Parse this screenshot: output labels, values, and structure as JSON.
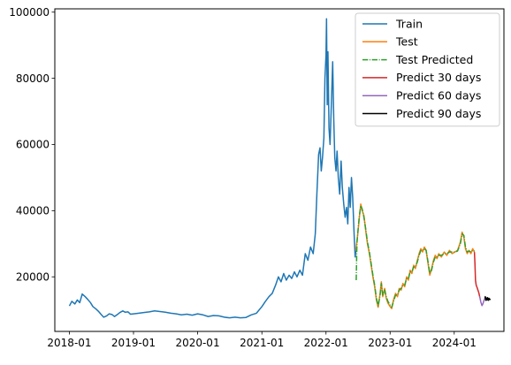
{
  "chart_data": {
    "type": "line",
    "title": "",
    "xlabel": "",
    "ylabel": "",
    "xlim": [
      "2017-10-10",
      "2024-10-10"
    ],
    "ylim": [
      3500,
      101000
    ],
    "grid": false,
    "legend_position": "top-right",
    "x_ticks": [
      "2018-01",
      "2019-01",
      "2020-01",
      "2021-01",
      "2022-01",
      "2023-01",
      "2024-01"
    ],
    "y_ticks": [
      20000,
      40000,
      60000,
      80000,
      100000
    ],
    "series": [
      {
        "name": "Train",
        "color": "#1f77b4",
        "style": "solid",
        "points": [
          [
            "2018-01-01",
            11200
          ],
          [
            "2018-01-15",
            12600
          ],
          [
            "2018-02-01",
            11800
          ],
          [
            "2018-02-15",
            13000
          ],
          [
            "2018-03-01",
            12200
          ],
          [
            "2018-03-15",
            14800
          ],
          [
            "2018-04-01",
            14000
          ],
          [
            "2018-04-15",
            13200
          ],
          [
            "2018-05-01",
            12200
          ],
          [
            "2018-05-15",
            11000
          ],
          [
            "2018-06-01",
            10300
          ],
          [
            "2018-06-15",
            9600
          ],
          [
            "2018-07-01",
            8600
          ],
          [
            "2018-07-15",
            7800
          ],
          [
            "2018-08-01",
            8200
          ],
          [
            "2018-08-15",
            8800
          ],
          [
            "2018-09-01",
            8600
          ],
          [
            "2018-09-15",
            8000
          ],
          [
            "2018-10-01",
            8600
          ],
          [
            "2018-10-15",
            9200
          ],
          [
            "2018-11-01",
            9700
          ],
          [
            "2018-11-15",
            9300
          ],
          [
            "2018-12-01",
            9400
          ],
          [
            "2018-12-15",
            8700
          ],
          [
            "2019-01-01",
            8800
          ],
          [
            "2019-02-01",
            9000
          ],
          [
            "2019-03-01",
            9200
          ],
          [
            "2019-04-01",
            9400
          ],
          [
            "2019-05-01",
            9700
          ],
          [
            "2019-06-01",
            9500
          ],
          [
            "2019-07-01",
            9300
          ],
          [
            "2019-08-01",
            9000
          ],
          [
            "2019-09-01",
            8800
          ],
          [
            "2019-10-01",
            8500
          ],
          [
            "2019-11-01",
            8700
          ],
          [
            "2019-12-01",
            8400
          ],
          [
            "2020-01-01",
            8800
          ],
          [
            "2020-02-01",
            8500
          ],
          [
            "2020-03-01",
            8000
          ],
          [
            "2020-04-01",
            8300
          ],
          [
            "2020-05-01",
            8200
          ],
          [
            "2020-06-01",
            7800
          ],
          [
            "2020-07-01",
            7600
          ],
          [
            "2020-08-01",
            7800
          ],
          [
            "2020-09-01",
            7600
          ],
          [
            "2020-10-01",
            7700
          ],
          [
            "2020-11-01",
            8500
          ],
          [
            "2020-12-01",
            9000
          ],
          [
            "2021-01-01",
            11000
          ],
          [
            "2021-01-20",
            12500
          ],
          [
            "2021-02-10",
            14000
          ],
          [
            "2021-03-01",
            15000
          ],
          [
            "2021-03-20",
            17500
          ],
          [
            "2021-04-05",
            20000
          ],
          [
            "2021-04-20",
            18500
          ],
          [
            "2021-05-05",
            21000
          ],
          [
            "2021-05-20",
            19000
          ],
          [
            "2021-06-05",
            20500
          ],
          [
            "2021-06-20",
            19500
          ],
          [
            "2021-07-05",
            21500
          ],
          [
            "2021-07-20",
            20000
          ],
          [
            "2021-08-05",
            22000
          ],
          [
            "2021-08-20",
            20500
          ],
          [
            "2021-09-05",
            27000
          ],
          [
            "2021-09-20",
            25000
          ],
          [
            "2021-10-05",
            29000
          ],
          [
            "2021-10-20",
            27000
          ],
          [
            "2021-11-01",
            33000
          ],
          [
            "2021-11-10",
            45000
          ],
          [
            "2021-11-20",
            57000
          ],
          [
            "2021-11-28",
            59000
          ],
          [
            "2021-12-05",
            52000
          ],
          [
            "2021-12-12",
            56000
          ],
          [
            "2021-12-20",
            62000
          ],
          [
            "2021-12-26",
            80000
          ],
          [
            "2022-01-01",
            87000
          ],
          [
            "2022-01-04",
            98000
          ],
          [
            "2022-01-08",
            72000
          ],
          [
            "2022-01-12",
            88000
          ],
          [
            "2022-01-18",
            65000
          ],
          [
            "2022-01-24",
            60000
          ],
          [
            "2022-02-01",
            73000
          ],
          [
            "2022-02-08",
            85000
          ],
          [
            "2022-02-14",
            68000
          ],
          [
            "2022-02-20",
            56000
          ],
          [
            "2022-02-27",
            52000
          ],
          [
            "2022-03-05",
            58000
          ],
          [
            "2022-03-12",
            50000
          ],
          [
            "2022-03-20",
            45000
          ],
          [
            "2022-03-28",
            55000
          ],
          [
            "2022-04-04",
            47000
          ],
          [
            "2022-04-12",
            42000
          ],
          [
            "2022-04-20",
            38000
          ],
          [
            "2022-04-28",
            41000
          ],
          [
            "2022-05-05",
            36000
          ],
          [
            "2022-05-12",
            47000
          ],
          [
            "2022-05-19",
            41000
          ],
          [
            "2022-05-26",
            50000
          ],
          [
            "2022-06-02",
            44000
          ],
          [
            "2022-06-10",
            33000
          ],
          [
            "2022-06-16",
            26000
          ],
          [
            "2022-06-20",
            28000
          ]
        ]
      },
      {
        "name": "Test",
        "color": "#ff7f0e",
        "style": "solid",
        "points": [
          [
            "2022-06-20",
            28000
          ],
          [
            "2022-07-01",
            33000
          ],
          [
            "2022-07-10",
            38000
          ],
          [
            "2022-07-18",
            42000
          ],
          [
            "2022-07-26",
            40000
          ],
          [
            "2022-08-05",
            38500
          ],
          [
            "2022-08-15",
            34000
          ],
          [
            "2022-08-25",
            30000
          ],
          [
            "2022-09-05",
            27000
          ],
          [
            "2022-09-15",
            23500
          ],
          [
            "2022-09-25",
            20000
          ],
          [
            "2022-10-05",
            17000
          ],
          [
            "2022-10-15",
            13000
          ],
          [
            "2022-10-25",
            10800
          ],
          [
            "2022-11-05",
            15000
          ],
          [
            "2022-11-12",
            18500
          ],
          [
            "2022-11-20",
            14000
          ],
          [
            "2022-12-01",
            16500
          ],
          [
            "2022-12-10",
            13500
          ],
          [
            "2022-12-20",
            12000
          ],
          [
            "2023-01-01",
            11000
          ],
          [
            "2023-01-10",
            10400
          ],
          [
            "2023-01-20",
            13000
          ],
          [
            "2023-02-01",
            15000
          ],
          [
            "2023-02-12",
            14000
          ],
          [
            "2023-02-22",
            16500
          ],
          [
            "2023-03-05",
            16000
          ],
          [
            "2023-03-15",
            18000
          ],
          [
            "2023-03-25",
            17000
          ],
          [
            "2023-04-05",
            20000
          ],
          [
            "2023-04-15",
            19000
          ],
          [
            "2023-04-25",
            22000
          ],
          [
            "2023-05-05",
            21000
          ],
          [
            "2023-05-15",
            23500
          ],
          [
            "2023-05-25",
            22500
          ],
          [
            "2023-06-05",
            25000
          ],
          [
            "2023-06-15",
            27000
          ],
          [
            "2023-06-25",
            28500
          ],
          [
            "2023-07-05",
            27500
          ],
          [
            "2023-07-15",
            29000
          ],
          [
            "2023-07-25",
            28000
          ],
          [
            "2023-08-05",
            24000
          ],
          [
            "2023-08-15",
            20500
          ],
          [
            "2023-08-25",
            22500
          ],
          [
            "2023-09-05",
            25000
          ],
          [
            "2023-09-15",
            26500
          ],
          [
            "2023-09-25",
            25500
          ],
          [
            "2023-10-05",
            27000
          ],
          [
            "2023-10-20",
            26000
          ],
          [
            "2023-11-05",
            27500
          ],
          [
            "2023-11-20",
            26500
          ],
          [
            "2023-12-05",
            28000
          ],
          [
            "2023-12-20",
            27000
          ],
          [
            "2024-01-05",
            27500
          ],
          [
            "2024-01-20",
            28000
          ],
          [
            "2024-02-05",
            30500
          ],
          [
            "2024-02-15",
            33500
          ],
          [
            "2024-02-25",
            32000
          ],
          [
            "2024-03-05",
            28500
          ],
          [
            "2024-03-15",
            27000
          ],
          [
            "2024-03-25",
            28000
          ],
          [
            "2024-04-05",
            27000
          ],
          [
            "2024-04-15",
            28500
          ],
          [
            "2024-04-25",
            27500
          ]
        ]
      },
      {
        "name": "Test Predicted",
        "color": "#2ca02c",
        "style": "dashdot",
        "points": [
          [
            "2022-06-22",
            19000
          ],
          [
            "2022-06-26",
            30000
          ],
          [
            "2022-07-02",
            34000
          ],
          [
            "2022-07-10",
            38500
          ],
          [
            "2022-07-18",
            41500
          ],
          [
            "2022-07-26",
            40500
          ],
          [
            "2022-08-05",
            38000
          ],
          [
            "2022-08-15",
            34500
          ],
          [
            "2022-08-25",
            30500
          ],
          [
            "2022-09-05",
            27500
          ],
          [
            "2022-09-15",
            24000
          ],
          [
            "2022-09-25",
            20500
          ],
          [
            "2022-10-05",
            17500
          ],
          [
            "2022-10-15",
            13500
          ],
          [
            "2022-10-25",
            11200
          ],
          [
            "2022-11-05",
            14500
          ],
          [
            "2022-11-12",
            18000
          ],
          [
            "2022-11-20",
            14500
          ],
          [
            "2022-12-01",
            16000
          ],
          [
            "2022-12-10",
            14000
          ],
          [
            "2022-12-20",
            12500
          ],
          [
            "2023-01-01",
            11500
          ],
          [
            "2023-01-10",
            10800
          ],
          [
            "2023-01-20",
            12500
          ],
          [
            "2023-02-01",
            14500
          ],
          [
            "2023-02-12",
            14500
          ],
          [
            "2023-02-22",
            16000
          ],
          [
            "2023-03-05",
            16500
          ],
          [
            "2023-03-15",
            17500
          ],
          [
            "2023-03-25",
            17500
          ],
          [
            "2023-04-05",
            19500
          ],
          [
            "2023-04-15",
            19500
          ],
          [
            "2023-04-25",
            21500
          ],
          [
            "2023-05-05",
            21500
          ],
          [
            "2023-05-15",
            23000
          ],
          [
            "2023-05-25",
            23000
          ],
          [
            "2023-06-05",
            24500
          ],
          [
            "2023-06-15",
            26500
          ],
          [
            "2023-06-25",
            28000
          ],
          [
            "2023-07-05",
            28000
          ],
          [
            "2023-07-15",
            28500
          ],
          [
            "2023-07-25",
            28000
          ],
          [
            "2023-08-05",
            24500
          ],
          [
            "2023-08-15",
            21000
          ],
          [
            "2023-08-25",
            22000
          ],
          [
            "2023-09-05",
            24500
          ],
          [
            "2023-09-15",
            26000
          ],
          [
            "2023-09-25",
            26000
          ],
          [
            "2023-10-05",
            26500
          ],
          [
            "2023-10-20",
            26500
          ],
          [
            "2023-11-05",
            27000
          ],
          [
            "2023-11-20",
            27000
          ],
          [
            "2023-12-05",
            27500
          ],
          [
            "2023-12-20",
            27500
          ],
          [
            "2024-01-05",
            27500
          ],
          [
            "2024-01-20",
            27800
          ],
          [
            "2024-02-05",
            30000
          ],
          [
            "2024-02-15",
            33000
          ],
          [
            "2024-02-25",
            32500
          ],
          [
            "2024-03-05",
            29000
          ],
          [
            "2024-03-15",
            27500
          ],
          [
            "2024-03-25",
            27800
          ],
          [
            "2024-04-05",
            27500
          ],
          [
            "2024-04-15",
            28000
          ],
          [
            "2024-04-25",
            27800
          ]
        ]
      },
      {
        "name": "Predict 30 days",
        "color": "#d62728",
        "style": "solid",
        "points": [
          [
            "2024-04-25",
            27500
          ],
          [
            "2024-04-28",
            24000
          ],
          [
            "2024-05-01",
            19000
          ],
          [
            "2024-05-05",
            17500
          ],
          [
            "2024-05-10",
            16800
          ],
          [
            "2024-05-15",
            16000
          ],
          [
            "2024-05-20",
            15200
          ],
          [
            "2024-05-25",
            14000
          ]
        ]
      },
      {
        "name": "Predict 60 days",
        "color": "#9467bd",
        "style": "solid",
        "points": [
          [
            "2024-05-25",
            14000
          ],
          [
            "2024-06-01",
            12300
          ],
          [
            "2024-06-07",
            11300
          ],
          [
            "2024-06-12",
            11800
          ],
          [
            "2024-06-18",
            12800
          ],
          [
            "2024-06-24",
            13500
          ]
        ]
      },
      {
        "name": "Predict 90 days",
        "color": "#000000",
        "style": "solid",
        "points": [
          [
            "2024-06-24",
            13500
          ],
          [
            "2024-06-26",
            14000
          ],
          [
            "2024-06-29",
            12900
          ],
          [
            "2024-07-02",
            13600
          ],
          [
            "2024-07-05",
            13000
          ],
          [
            "2024-07-09",
            13700
          ],
          [
            "2024-07-13",
            12900
          ],
          [
            "2024-07-17",
            13500
          ],
          [
            "2024-07-21",
            13100
          ],
          [
            "2024-07-24",
            13400
          ]
        ]
      }
    ]
  }
}
